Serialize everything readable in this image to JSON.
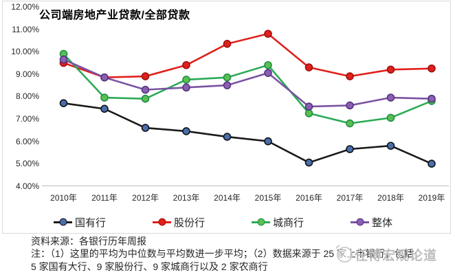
{
  "title": "公司端房地产业贷款/全部贷款",
  "chart_data": {
    "type": "line",
    "title": "公司端房地产业贷款/全部贷款",
    "categories": [
      "2010年",
      "2011年",
      "2012年",
      "2013年",
      "2014年",
      "2015年",
      "2016年",
      "2017年",
      "2018年",
      "2019年"
    ],
    "series": [
      {
        "name": "国有行",
        "color": "#1a1a1a",
        "marker_fill": "#4a6ea9",
        "marker_stroke": "#10131a",
        "values": [
          7.7,
          7.45,
          6.6,
          6.45,
          6.2,
          6.0,
          5.05,
          5.65,
          5.8,
          5.0
        ]
      },
      {
        "name": "股份行",
        "color": "#e0201c",
        "marker_fill": "#e0201c",
        "marker_stroke": "#9d100d",
        "values": [
          9.5,
          8.85,
          8.9,
          9.4,
          10.35,
          10.8,
          9.3,
          8.9,
          9.2,
          9.25
        ]
      },
      {
        "name": "城商行",
        "color": "#2bab56",
        "marker_fill": "#5abf51",
        "marker_stroke": "#1d8f46",
        "values": [
          9.9,
          7.95,
          7.9,
          8.75,
          8.85,
          9.4,
          7.25,
          6.8,
          7.05,
          7.8
        ]
      },
      {
        "name": "整体",
        "color": "#7a52a2",
        "marker_fill": "#8a5fb2",
        "marker_stroke": "#563380",
        "values": [
          9.65,
          8.85,
          8.3,
          8.4,
          8.5,
          9.05,
          7.55,
          7.6,
          7.95,
          7.9
        ]
      }
    ],
    "y_ticks": [
      {
        "value": 12,
        "label": "12.00%"
      },
      {
        "value": 11,
        "label": "11.00%"
      },
      {
        "value": 10,
        "label": "10.00%"
      },
      {
        "value": 9,
        "label": "9.00%"
      },
      {
        "value": 8,
        "label": "8.00%"
      },
      {
        "value": 7,
        "label": "7.00%"
      },
      {
        "value": 6,
        "label": "6.00%"
      },
      {
        "value": 5,
        "label": "5.00%"
      },
      {
        "value": 4,
        "label": "4.00%"
      }
    ],
    "ylim": [
      4,
      12
    ],
    "grid": false,
    "legend_position": "bottom",
    "xlabel": "",
    "ylabel": ""
  },
  "footer": {
    "source": "资料来源：各银行历年周报",
    "note_line1": "注：（1）这里的平均为中位数与平均数进一步平均；（2）数据来源于 25 家上市银行，包括",
    "note_line2": "5 家国有大行、9 家股份行、9 家城商行以及 2 家农商行"
  },
  "watermark": {
    "text": "任博宏观论道",
    "icon": "magnifier-logo-icon",
    "color": "#c4c4c4"
  }
}
